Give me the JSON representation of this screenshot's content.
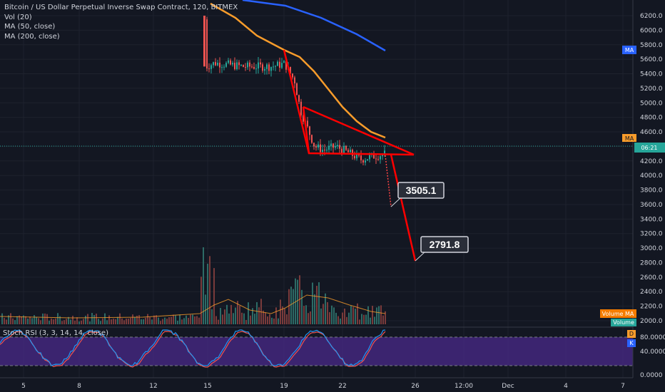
{
  "legend": {
    "title": "Bitcoin / US Dollar Perpetual Inverse Swap Contract, 120, BITMEX",
    "vol": "Vol (20)",
    "ma50": "MA (50, close)",
    "ma200": "MA (200, close)"
  },
  "stoch": {
    "title": "Stoch RSI (3, 3, 14, 14, close)"
  },
  "price_axis": [
    "6200.0",
    "6000.0",
    "5800.0",
    "5600.0",
    "5400.0",
    "5200.0",
    "5000.0",
    "4800.0",
    "4600.0",
    "4400.0",
    "4200.0",
    "4000.0",
    "3800.0",
    "3600.0",
    "3400.0",
    "3200.0",
    "3000.0",
    "2800.0",
    "2600.0",
    "2400.0",
    "2200.0",
    "2000.0"
  ],
  "stoch_axis": [
    "80.0000",
    "40.0000",
    "0.0000"
  ],
  "time_axis": [
    "5",
    "8",
    "12",
    "15",
    "19",
    "22",
    "26",
    "12:00",
    "Dec",
    "4",
    "7"
  ],
  "tags": {
    "ma": "MA",
    "ma_orange": "MA",
    "countdown": "06:21",
    "volume_ma": "Volume MA",
    "volume": "Volume",
    "stoch_d": "D",
    "stoch_k": "K"
  },
  "annotations": {
    "target1": "3505.1",
    "target2": "2791.8"
  },
  "colors": {
    "background": "#131722",
    "up": "#26a69a",
    "down": "#ef5350",
    "ma50": "#f89c2b",
    "ma200": "#2962ff",
    "pattern": "#ff0000",
    "stoch_band": "#4a2a8a",
    "stoch_k": "#2196f3",
    "stoch_d": "#ef5350"
  }
}
